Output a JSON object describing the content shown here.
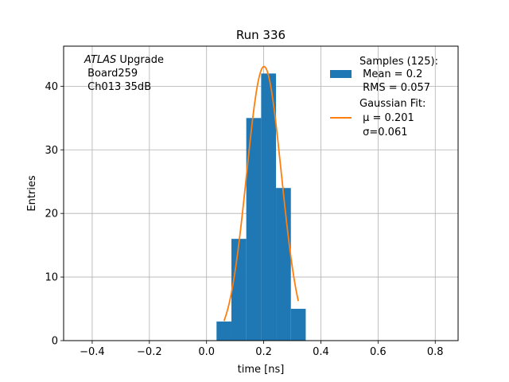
{
  "chart_data": {
    "type": "histogram",
    "title": "Run 336",
    "xlabel": "time [ns]",
    "ylabel": "Entries",
    "xlim": [
      -0.5,
      0.88
    ],
    "ylim": [
      0,
      46.3
    ],
    "grid": true,
    "x_ticks": [
      -0.4,
      -0.2,
      0.0,
      0.2,
      0.4,
      0.6,
      0.8
    ],
    "x_tick_labels": [
      "−0.4",
      "−0.2",
      "0.0",
      "0.2",
      "0.4",
      "0.6",
      "0.8"
    ],
    "y_ticks": [
      0,
      10,
      20,
      30,
      40
    ],
    "y_tick_labels": [
      "0",
      "10",
      "20",
      "30",
      "40"
    ],
    "histogram": {
      "name": "Samples (125):",
      "color": "#1f77b4",
      "bin_edges": [
        0.035,
        0.087,
        0.139,
        0.191,
        0.243,
        0.295,
        0.347
      ],
      "counts": [
        3,
        16,
        35,
        42,
        24,
        5
      ]
    },
    "fit": {
      "name": "Gaussian Fit:",
      "color": "#ff7f0e",
      "mu": 0.201,
      "sigma": 0.061,
      "amplitude": 43.1,
      "x_range": [
        0.061,
        0.321
      ]
    },
    "legend": {
      "location": "upper-right",
      "histogram_lines": [
        "Samples (125):",
        " Mean = 0.2",
        " RMS = 0.057"
      ],
      "fit_lines": [
        "Gaussian Fit:",
        " μ = 0.201",
        " σ=0.061"
      ]
    },
    "annotation": {
      "location": "upper-left",
      "italic_word": "ATLAS",
      "word": " Upgrade",
      "lines": [
        " Board259",
        " Ch013 35dB"
      ]
    }
  }
}
